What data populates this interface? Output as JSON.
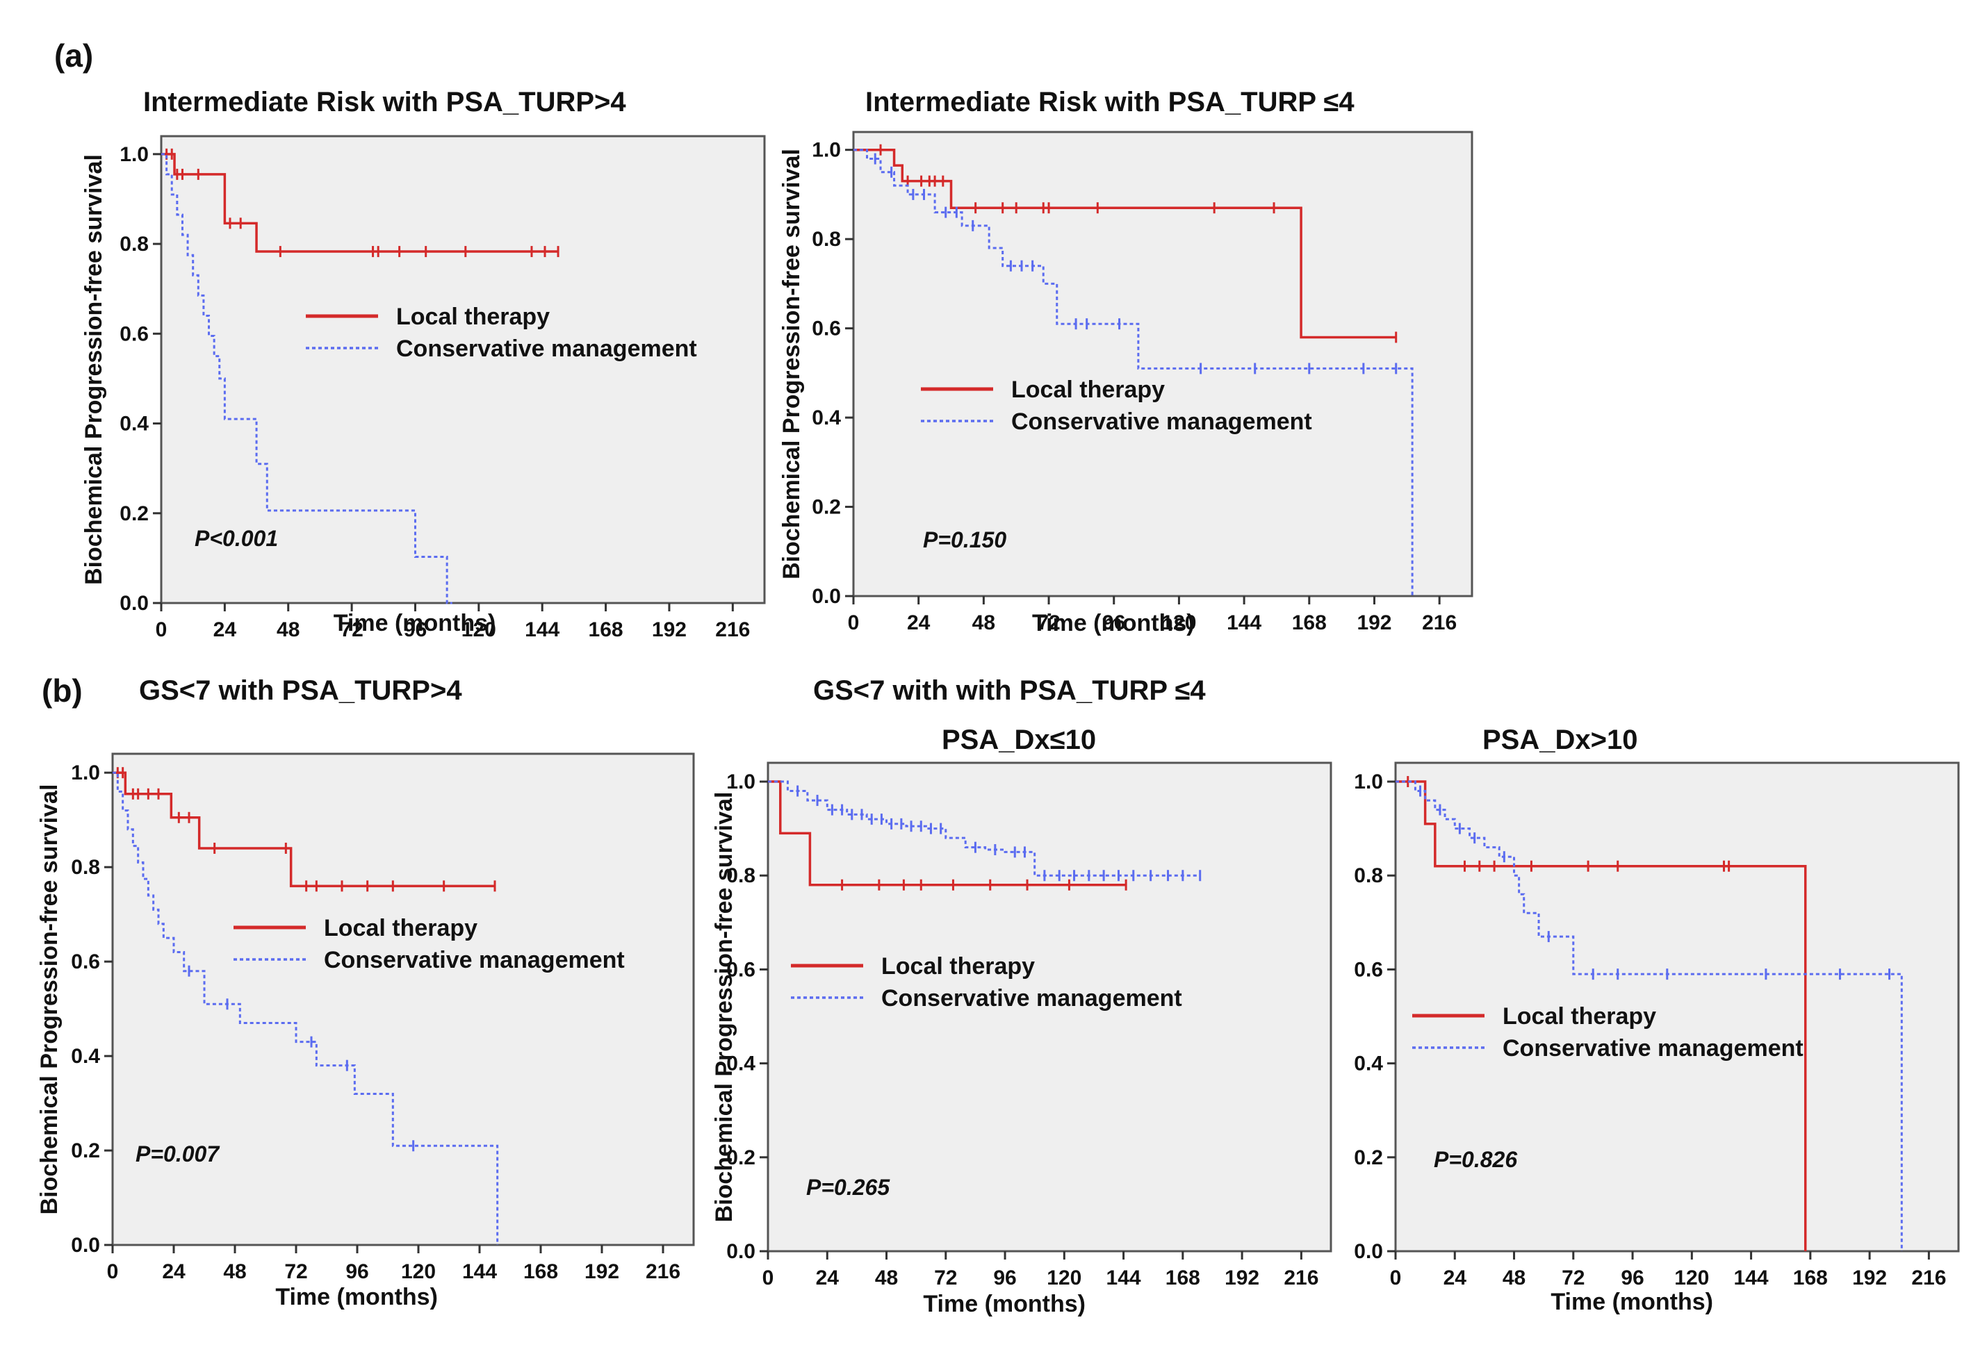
{
  "figure": {
    "panel_a_label": "(a)",
    "panel_b_label": "(b)",
    "group_b2_title": "GS<7  with with PSA_TURP ≤4"
  },
  "colors": {
    "local_therapy": "#d42a2a",
    "conservative_management": "#5b6cf0",
    "plot_background": "#efefef",
    "frame": "#555555"
  },
  "chart_data": [
    {
      "type": "line",
      "step": true,
      "title": "Intermediate Risk with PSA_TURP>4",
      "xlabel": "Time (months)",
      "ylabel": "Biochemical Progression-free survival",
      "xlim": [
        0,
        228
      ],
      "ylim": [
        0,
        1.04
      ],
      "xticks": [
        0,
        24,
        48,
        72,
        96,
        120,
        144,
        168,
        192,
        216
      ],
      "yticks": [
        0.0,
        0.2,
        0.4,
        0.6,
        0.8,
        1.0
      ],
      "grid": false,
      "legend_position": "middle-right",
      "annotation": "P<0.001",
      "series": [
        {
          "name": "Local therapy",
          "style": "solid",
          "x": [
            0,
            5,
            24,
            36,
            150
          ],
          "y": [
            1.0,
            0.955,
            0.846,
            0.783,
            0.783
          ],
          "censor_x": [
            2,
            4,
            6,
            8,
            14,
            26,
            30,
            45,
            80,
            82,
            90,
            100,
            115,
            140,
            145,
            150
          ]
        },
        {
          "name": "Conservative management",
          "style": "dotted",
          "x": [
            0,
            2,
            4,
            6,
            8,
            10,
            12,
            14,
            16,
            18,
            20,
            22,
            24,
            36,
            40,
            48,
            96,
            108,
            110
          ],
          "y": [
            1.0,
            0.955,
            0.91,
            0.865,
            0.82,
            0.775,
            0.73,
            0.685,
            0.64,
            0.595,
            0.55,
            0.5,
            0.41,
            0.31,
            0.206,
            0.206,
            0.103,
            0.0,
            0.0
          ],
          "censor_x": []
        }
      ]
    },
    {
      "type": "line",
      "step": true,
      "title": "Intermediate Risk with PSA_TURP ≤4",
      "xlabel": "Time (months)",
      "ylabel": "Biochemical Progression-free survival",
      "xlim": [
        0,
        228
      ],
      "ylim": [
        0,
        1.04
      ],
      "xticks": [
        0,
        24,
        48,
        72,
        96,
        120,
        144,
        168,
        192,
        216
      ],
      "yticks": [
        0.0,
        0.2,
        0.4,
        0.6,
        0.8,
        1.0
      ],
      "grid": false,
      "legend_position": "middle-right",
      "annotation": "P=0.150",
      "series": [
        {
          "name": "Local therapy",
          "style": "solid",
          "x": [
            0,
            15,
            18,
            36,
            165,
            200
          ],
          "y": [
            1.0,
            0.965,
            0.93,
            0.87,
            0.58,
            0.58
          ],
          "censor_x": [
            10,
            20,
            25,
            28,
            30,
            33,
            45,
            55,
            60,
            70,
            72,
            90,
            133,
            155,
            200
          ]
        },
        {
          "name": "Conservative management",
          "style": "dotted",
          "x": [
            0,
            5,
            10,
            15,
            20,
            30,
            40,
            50,
            55,
            70,
            75,
            105,
            205,
            206
          ],
          "y": [
            1.0,
            0.98,
            0.95,
            0.92,
            0.9,
            0.86,
            0.83,
            0.78,
            0.74,
            0.7,
            0.61,
            0.51,
            0.51,
            0.0
          ],
          "censor_x": [
            8,
            14,
            22,
            26,
            34,
            38,
            44,
            58,
            62,
            66,
            82,
            86,
            98,
            128,
            148,
            168,
            188,
            200
          ]
        }
      ]
    },
    {
      "type": "line",
      "step": true,
      "title": "GS<7  with PSA_TURP>4",
      "xlabel": "Time (months)",
      "ylabel": "Biochemical Progression-free survival",
      "xlim": [
        0,
        228
      ],
      "ylim": [
        0,
        1.04
      ],
      "xticks": [
        0,
        24,
        48,
        72,
        96,
        120,
        144,
        168,
        192,
        216
      ],
      "yticks": [
        0.0,
        0.2,
        0.4,
        0.6,
        0.8,
        1.0
      ],
      "grid": false,
      "legend_position": "middle-right",
      "annotation": "P=0.007",
      "series": [
        {
          "name": "Local therapy",
          "style": "solid",
          "x": [
            0,
            5,
            23,
            34,
            70,
            150
          ],
          "y": [
            1.0,
            0.955,
            0.905,
            0.84,
            0.76,
            0.76
          ],
          "censor_x": [
            2,
            4,
            8,
            10,
            14,
            18,
            26,
            30,
            40,
            68,
            76,
            80,
            90,
            100,
            110,
            130,
            150
          ]
        },
        {
          "name": "Conservative management",
          "style": "dotted",
          "x": [
            0,
            2,
            4,
            6,
            8,
            10,
            12,
            14,
            16,
            18,
            20,
            24,
            28,
            36,
            40,
            50,
            72,
            80,
            95,
            110,
            150,
            151
          ],
          "y": [
            1.0,
            0.96,
            0.92,
            0.88,
            0.845,
            0.81,
            0.775,
            0.74,
            0.71,
            0.68,
            0.65,
            0.62,
            0.58,
            0.51,
            0.51,
            0.47,
            0.43,
            0.38,
            0.32,
            0.21,
            0.21,
            0.0
          ],
          "censor_x": [
            30,
            45,
            78,
            92,
            118
          ]
        }
      ]
    },
    {
      "type": "line",
      "step": true,
      "title": "PSA_Dx≤10",
      "xlabel": "Time (months)",
      "ylabel": "Biochemical Progression-free survival",
      "xlim": [
        0,
        228
      ],
      "ylim": [
        0,
        1.04
      ],
      "xticks": [
        0,
        24,
        48,
        72,
        96,
        120,
        144,
        168,
        192,
        216
      ],
      "yticks": [
        0.0,
        0.2,
        0.4,
        0.6,
        0.8,
        1.0
      ],
      "grid": false,
      "legend_position": "middle-left",
      "annotation": "P=0.265",
      "series": [
        {
          "name": "Local therapy",
          "style": "solid",
          "x": [
            0,
            5,
            17,
            145
          ],
          "y": [
            1.0,
            0.89,
            0.78,
            0.78
          ],
          "censor_x": [
            30,
            45,
            55,
            62,
            75,
            90,
            105,
            122,
            145
          ]
        },
        {
          "name": "Conservative management",
          "style": "dotted",
          "x": [
            0,
            8,
            16,
            24,
            32,
            40,
            48,
            56,
            64,
            72,
            80,
            88,
            96,
            108,
            175
          ],
          "y": [
            1.0,
            0.98,
            0.96,
            0.94,
            0.93,
            0.92,
            0.91,
            0.905,
            0.9,
            0.88,
            0.86,
            0.855,
            0.85,
            0.8,
            0.8
          ],
          "censor_x": [
            12,
            20,
            26,
            30,
            34,
            38,
            42,
            46,
            50,
            54,
            58,
            62,
            66,
            70,
            84,
            92,
            100,
            104,
            112,
            118,
            124,
            130,
            136,
            142,
            148,
            155,
            162,
            168,
            175
          ]
        }
      ]
    },
    {
      "type": "line",
      "step": true,
      "title": "PSA_Dx>10",
      "xlabel": "Time (months)",
      "ylabel": "",
      "xlim": [
        0,
        228
      ],
      "ylim": [
        0,
        1.04
      ],
      "xticks": [
        0,
        24,
        48,
        72,
        96,
        120,
        144,
        168,
        192,
        216
      ],
      "yticks": [
        0.0,
        0.2,
        0.4,
        0.6,
        0.8,
        1.0
      ],
      "grid": false,
      "legend_position": "middle-left",
      "annotation": "P=0.826",
      "series": [
        {
          "name": "Local therapy",
          "style": "solid",
          "x": [
            0,
            12,
            16,
            165,
            166
          ],
          "y": [
            1.0,
            0.91,
            0.82,
            0.82,
            0.0
          ],
          "censor_x": [
            5,
            28,
            34,
            40,
            55,
            78,
            90,
            133,
            135
          ]
        },
        {
          "name": "Conservative management",
          "style": "dotted",
          "x": [
            0,
            8,
            12,
            16,
            20,
            24,
            30,
            36,
            42,
            48,
            50,
            52,
            58,
            72,
            204,
            205
          ],
          "y": [
            1.0,
            0.98,
            0.96,
            0.94,
            0.92,
            0.9,
            0.88,
            0.86,
            0.84,
            0.8,
            0.76,
            0.72,
            0.67,
            0.59,
            0.59,
            0.0
          ],
          "censor_x": [
            10,
            18,
            26,
            32,
            44,
            62,
            80,
            90,
            110,
            150,
            180,
            200
          ]
        }
      ]
    }
  ]
}
